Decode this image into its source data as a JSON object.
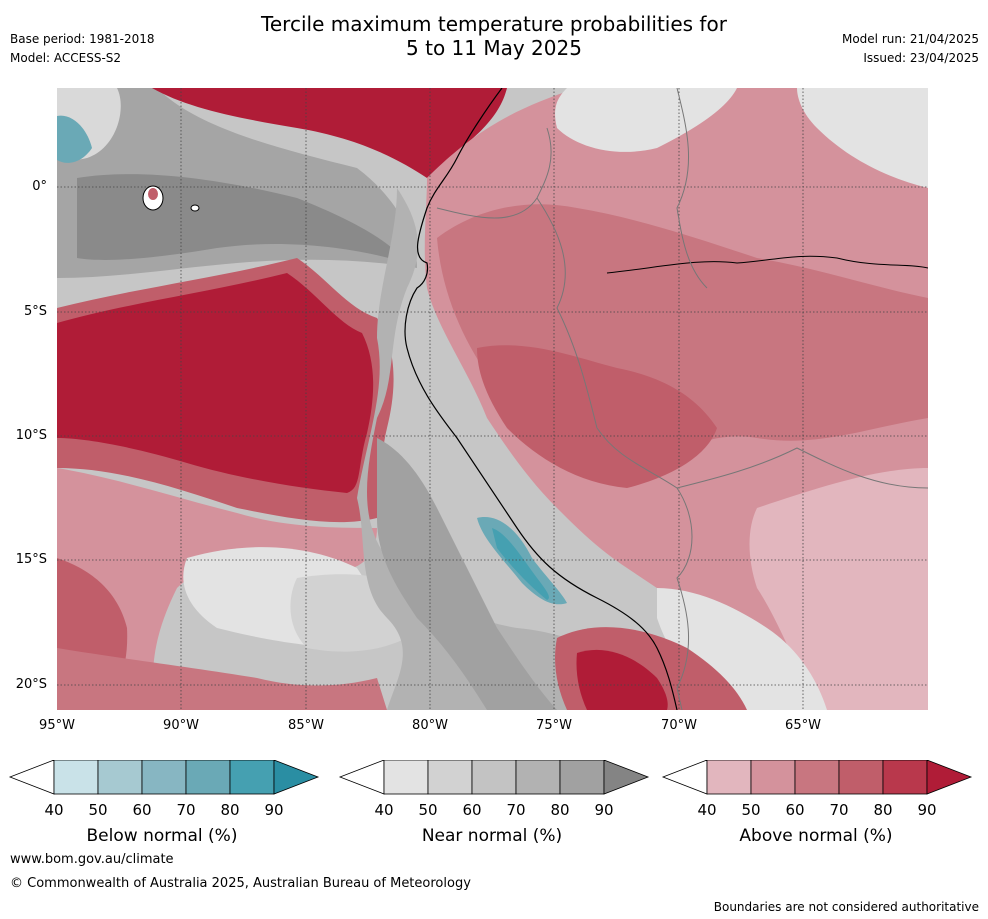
{
  "title": {
    "line1": "Tercile maximum temperature probabilities for",
    "line2": "5 to 11 May 2025"
  },
  "meta": {
    "base_period": "Base period: 1981-2018",
    "model": "Model: ACCESS-S2",
    "model_run": "Model run: 21/04/2025",
    "issued": "Issued: 23/04/2025"
  },
  "map": {
    "lat_labels": [
      "0°",
      "5°S",
      "10°S",
      "15°S",
      "20°S"
    ],
    "lon_labels": [
      "95°W",
      "90°W",
      "85°W",
      "80°W",
      "75°W",
      "70°W",
      "65°W"
    ]
  },
  "colorbars": [
    {
      "id": "below",
      "label": "Below normal (%)",
      "ticks": [
        "40",
        "50",
        "60",
        "70",
        "80",
        "90"
      ],
      "colors": [
        "#ffffff",
        "#c9e2e8",
        "#a6c9d1",
        "#87b6c2",
        "#6aa9b6",
        "#45a0b1",
        "#2a8ea3"
      ]
    },
    {
      "id": "near",
      "label": "Near normal (%)",
      "ticks": [
        "40",
        "50",
        "60",
        "70",
        "80",
        "90"
      ],
      "colors": [
        "#ffffff",
        "#e3e3e3",
        "#d2d2d2",
        "#c3c3c3",
        "#b2b2b2",
        "#a1a1a1",
        "#848484"
      ]
    },
    {
      "id": "above",
      "label": "Above normal (%)",
      "ticks": [
        "40",
        "50",
        "60",
        "70",
        "80",
        "90"
      ],
      "colors": [
        "#ffffff",
        "#e2b6be",
        "#d4929c",
        "#c87680",
        "#c05e6a",
        "#b9384c",
        "#b01c37"
      ]
    }
  ],
  "footer": {
    "url": "www.bom.gov.au/climate",
    "copyright": "© Commonwealth of Australia 2025, Australian Bureau of Meteorology",
    "note": "Boundaries are not considered authoritative"
  }
}
